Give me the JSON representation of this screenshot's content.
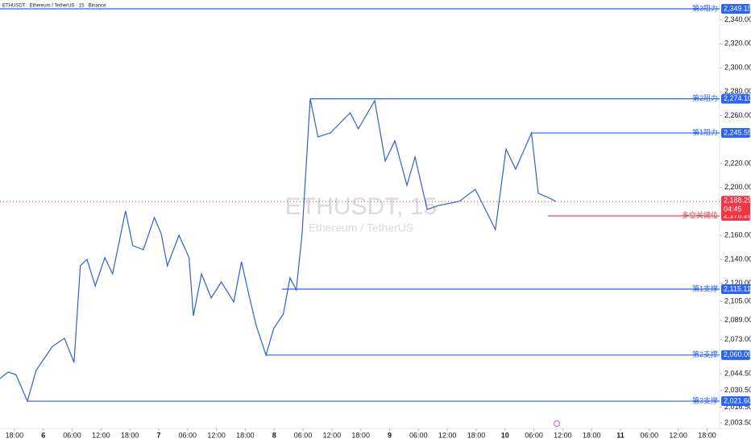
{
  "header": "ETHUSDT · Ethereum / TetherUS · 15 · Binance",
  "watermark": {
    "symbol": "ETHUSDT, 15",
    "name": "Ethereum / TetherUS"
  },
  "chart_data": {
    "type": "line",
    "x": [
      15.0,
      16.7,
      18.3,
      20.7,
      22.5,
      24.2,
      25.9,
      28.4,
      30.4,
      31.7,
      33.1,
      34.8,
      36.8,
      38.4,
      41.1,
      42.6,
      44.8,
      47.1,
      48.5,
      49.8,
      52.2,
      54.3,
      55.2,
      56.9,
      58.9,
      61.0,
      63.6,
      65.2,
      66.9,
      68.3,
      70.3,
      71.9,
      73.9,
      75.3,
      76.6,
      77.8,
      79.5,
      81.1,
      83.7,
      87.8,
      89.5,
      92.9,
      95.1,
      97.1,
      99.6,
      101.3,
      103.8,
      106.3,
      110.5,
      113.8,
      118.0,
      120.2,
      122.2,
      125.5,
      126.9,
      128.9,
      130.6
    ],
    "values": [
      2040.5,
      2045.9,
      2043.8,
      2021.6,
      2047.2,
      2057.3,
      2067.4,
      2074.1,
      2053.9,
      2134.6,
      2140.0,
      2117.8,
      2141.4,
      2127.9,
      2180.4,
      2151.5,
      2148.1,
      2175.0,
      2161.5,
      2134.6,
      2160.2,
      2141.4,
      2092.9,
      2127.9,
      2107.7,
      2121.2,
      2104.4,
      2138.0,
      2107.7,
      2084.2,
      2060.1,
      2082.2,
      2094.3,
      2124.5,
      2114.5,
      2161.5,
      2274.1,
      2242.2,
      2245.6,
      2262.4,
      2249.0,
      2272.5,
      2222.1,
      2238.9,
      2201.9,
      2225.4,
      2181.7,
      2185.1,
      2188.4,
      2198.5,
      2164.9,
      2232.1,
      2215.3,
      2245.6,
      2195.2,
      2191.8,
      2188.3
    ],
    "color": "#2f5fd8",
    "xlim": [
      15,
      164.6
    ],
    "ylim": [
      1998.77,
      2356.55
    ],
    "xticks": [
      {
        "value": 18,
        "label": "18:00"
      },
      {
        "value": 24,
        "label": "6"
      },
      {
        "value": 30,
        "label": "06:00"
      },
      {
        "value": 36,
        "label": "12:00"
      },
      {
        "value": 42,
        "label": "18:00"
      },
      {
        "value": 48,
        "label": "7"
      },
      {
        "value": 54,
        "label": "06:00"
      },
      {
        "value": 60,
        "label": "12:00"
      },
      {
        "value": 66,
        "label": "18:00"
      },
      {
        "value": 72,
        "label": "8"
      },
      {
        "value": 78,
        "label": "06:00"
      },
      {
        "value": 84,
        "label": "12:00"
      },
      {
        "value": 90,
        "label": "18:00"
      },
      {
        "value": 96,
        "label": "9"
      },
      {
        "value": 102,
        "label": "06:00"
      },
      {
        "value": 108,
        "label": "12:00"
      },
      {
        "value": 114,
        "label": "18:00"
      },
      {
        "value": 120,
        "label": "10"
      },
      {
        "value": 126,
        "label": "06:00"
      },
      {
        "value": 132,
        "label": "12:00"
      },
      {
        "value": 138,
        "label": "18:00"
      },
      {
        "value": 144,
        "label": "11"
      },
      {
        "value": 150,
        "label": "06:00"
      },
      {
        "value": 156,
        "label": "12:00"
      },
      {
        "value": 162,
        "label": "18:00"
      }
    ],
    "yticks": [
      {
        "value": 2340,
        "label": "2,340.00"
      },
      {
        "value": 2320,
        "label": "2,320.00"
      },
      {
        "value": 2300,
        "label": "2,300.00"
      },
      {
        "value": 2280,
        "label": "2,280.00"
      },
      {
        "value": 2260,
        "label": "2,260.00"
      },
      {
        "value": 2220,
        "label": "2,220.00"
      },
      {
        "value": 2200,
        "label": "2,200.00"
      },
      {
        "value": 2160,
        "label": "2,160.00"
      },
      {
        "value": 2140,
        "label": "2,140.00"
      },
      {
        "value": 2120,
        "label": "2,120.00"
      },
      {
        "value": 2105,
        "label": "2,105.00"
      },
      {
        "value": 2089,
        "label": "2,089.00"
      },
      {
        "value": 2073,
        "label": "2,073.00"
      },
      {
        "value": 2044.5,
        "label": "2,044.50"
      },
      {
        "value": 2030.5,
        "label": "2,030.50"
      },
      {
        "value": 2016.5,
        "label": "2,016.50"
      },
      {
        "value": 2003.5,
        "label": "2,003.50"
      }
    ],
    "levels": [
      {
        "name": "第3阻力",
        "value": 2349.15,
        "label": "2,349.15",
        "start": 15.0,
        "color": "#2962ff"
      },
      {
        "name": "第2阻力",
        "value": 2274.1,
        "label": "2,274.10",
        "start": 79.5,
        "color": "#2962ff"
      },
      {
        "name": "第1阻力",
        "value": 2245.55,
        "label": "2,245.55",
        "start": 125.5,
        "color": "#2962ff"
      },
      {
        "name": "多空关键位",
        "value": 2176.28,
        "label": "2,176.28",
        "start": 128.9,
        "color": "#f23645"
      },
      {
        "name": "第1支撑",
        "value": 2115.11,
        "label": "2,115.11",
        "start": 73.6,
        "color": "#2962ff"
      },
      {
        "name": "第2支撑",
        "value": 2060.08,
        "label": "2,060.08",
        "start": 70.3,
        "color": "#2962ff"
      },
      {
        "name": "第3支撑",
        "value": 2021.6,
        "label": "2,021.60",
        "start": 20.7,
        "color": "#2962ff"
      }
    ],
    "last_price": {
      "value": 2188.29,
      "label": "2,188.29",
      "countdown": "04:45",
      "color": "#f23645"
    }
  }
}
